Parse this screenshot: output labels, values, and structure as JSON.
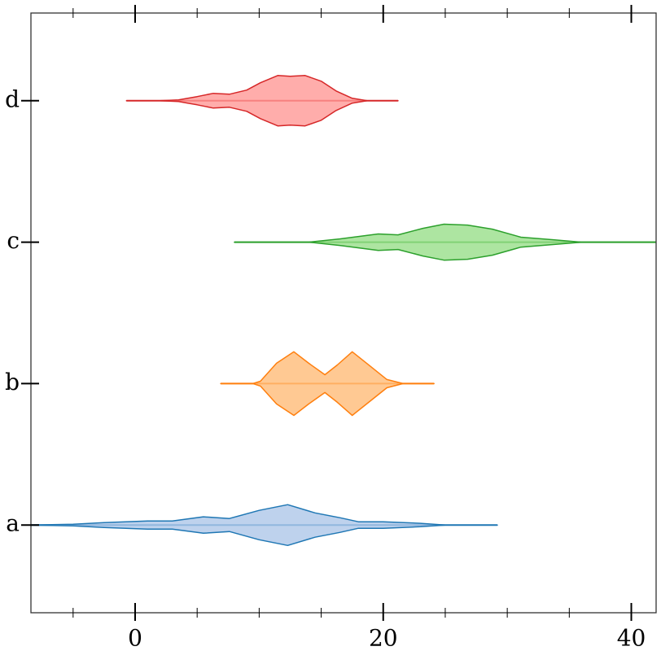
{
  "chart_data": {
    "type": "violin",
    "orientation": "horizontal",
    "xlim": [
      -8.4,
      42
    ],
    "xticks": [
      0,
      20,
      40
    ],
    "xminor_ticks": [
      -5,
      5,
      10,
      15,
      25,
      30,
      35
    ],
    "ylim": [
      -0.62,
      3.62
    ],
    "series": [
      {
        "name": "a",
        "color": "#aec7e8",
        "edgecolor": "#1f77b4",
        "x": [
          -8.4,
          -5,
          -2.5,
          1,
          3,
          5.5,
          7.6,
          10,
          12.3,
          14.5,
          16.5,
          18,
          20,
          23,
          25,
          29.2
        ],
        "widths": [
          0,
          0.006,
          0.017,
          0.029,
          0.029,
          0.058,
          0.046,
          0.104,
          0.144,
          0.086,
          0.052,
          0.023,
          0.023,
          0.012,
          0,
          0
        ]
      },
      {
        "name": "b",
        "color": "#ffbb78",
        "edgecolor": "#ff7f0e",
        "x": [
          6.9,
          9.5,
          10.1,
          11.4,
          12.8,
          14,
          15.3,
          16.3,
          17.5,
          18.9,
          20.3,
          21.6,
          24.1
        ],
        "widths": [
          0,
          0,
          0.017,
          0.144,
          0.225,
          0.144,
          0.063,
          0.132,
          0.225,
          0.127,
          0.029,
          0,
          0
        ]
      },
      {
        "name": "c",
        "color": "#98df8a",
        "edgecolor": "#2ca02c",
        "x": [
          8,
          14,
          16.5,
          19.6,
          21.2,
          23.2,
          24.9,
          26.8,
          28.8,
          31.1,
          33.7,
          36,
          42
        ],
        "widths": [
          0,
          0,
          0.023,
          0.058,
          0.052,
          0.098,
          0.127,
          0.121,
          0.092,
          0.035,
          0.017,
          0,
          0
        ]
      },
      {
        "name": "d",
        "color": "#ff9896",
        "edgecolor": "#d62728",
        "x": [
          -0.7,
          2,
          3.5,
          5,
          6.3,
          7.6,
          9,
          10.1,
          11.5,
          12.5,
          13.7,
          15,
          16.2,
          17.5,
          18.7,
          21.2
        ],
        "widths": [
          0,
          0,
          0.006,
          0.029,
          0.052,
          0.046,
          0.075,
          0.127,
          0.178,
          0.173,
          0.178,
          0.138,
          0.069,
          0.017,
          0,
          0
        ]
      }
    ]
  }
}
